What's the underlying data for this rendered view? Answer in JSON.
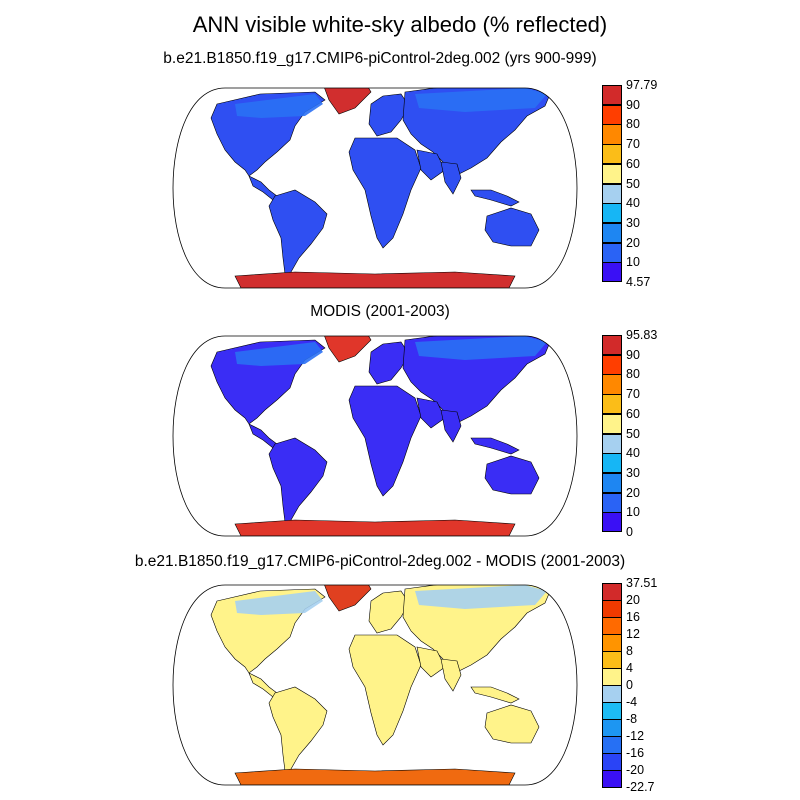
{
  "title": "ANN visible white-sky albedo (% reflected)",
  "colors": {
    "ocean": "#ffffff",
    "coast": "#000000",
    "abs_scale": [
      "#3a10f5",
      "#2a63f5",
      "#1e86f2",
      "#16b6f5",
      "#a6d0f0",
      "#fff38a",
      "#fbbd18",
      "#ff8800",
      "#ff3e00",
      "#d22a2a"
    ],
    "diff_scale": [
      "#3a10f5",
      "#2a44f6",
      "#2670f4",
      "#1d96f2",
      "#1dbcf4",
      "#a6d0f0",
      "#fff38a",
      "#fbbd18",
      "#ff9400",
      "#ff6a00",
      "#f03a00",
      "#d22a2a"
    ]
  },
  "panels": [
    {
      "id": "model",
      "subtitle": "b.e21.B1850.f19_g17.CMIP6-piControl-2deg.002 (yrs 900-999)",
      "colorbar_labels": [
        "97.79",
        "90",
        "80",
        "70",
        "60",
        "50",
        "40",
        "30",
        "20",
        "10",
        "4.57"
      ],
      "land_fill": "#2f4ff2",
      "ice_fill": "#d12e2e",
      "greenland_fill": "#d12e2e",
      "highlat_fill": "#2a70f4"
    },
    {
      "id": "obs",
      "subtitle": "MODIS (2001-2003)",
      "colorbar_labels": [
        "95.83",
        "90",
        "80",
        "70",
        "60",
        "50",
        "40",
        "30",
        "20",
        "10",
        "0"
      ],
      "land_fill": "#3a2df5",
      "ice_fill": "#e0362a",
      "greenland_fill": "#e0362a",
      "highlat_fill": "#2a70f4"
    },
    {
      "id": "diff",
      "subtitle": "b.e21.B1850.f19_g17.CMIP6-piControl-2deg.002 - MODIS (2001-2003)",
      "colorbar_labels": [
        "37.51",
        "20",
        "16",
        "12",
        "8",
        "4",
        "0",
        "-4",
        "-8",
        "-12",
        "-16",
        "-20",
        "-22.7"
      ],
      "land_fill": "#fff38a",
      "ice_fill": "#f06a10",
      "greenland_fill": "#e04020",
      "highlat_fill": "#a6d0f0"
    }
  ]
}
